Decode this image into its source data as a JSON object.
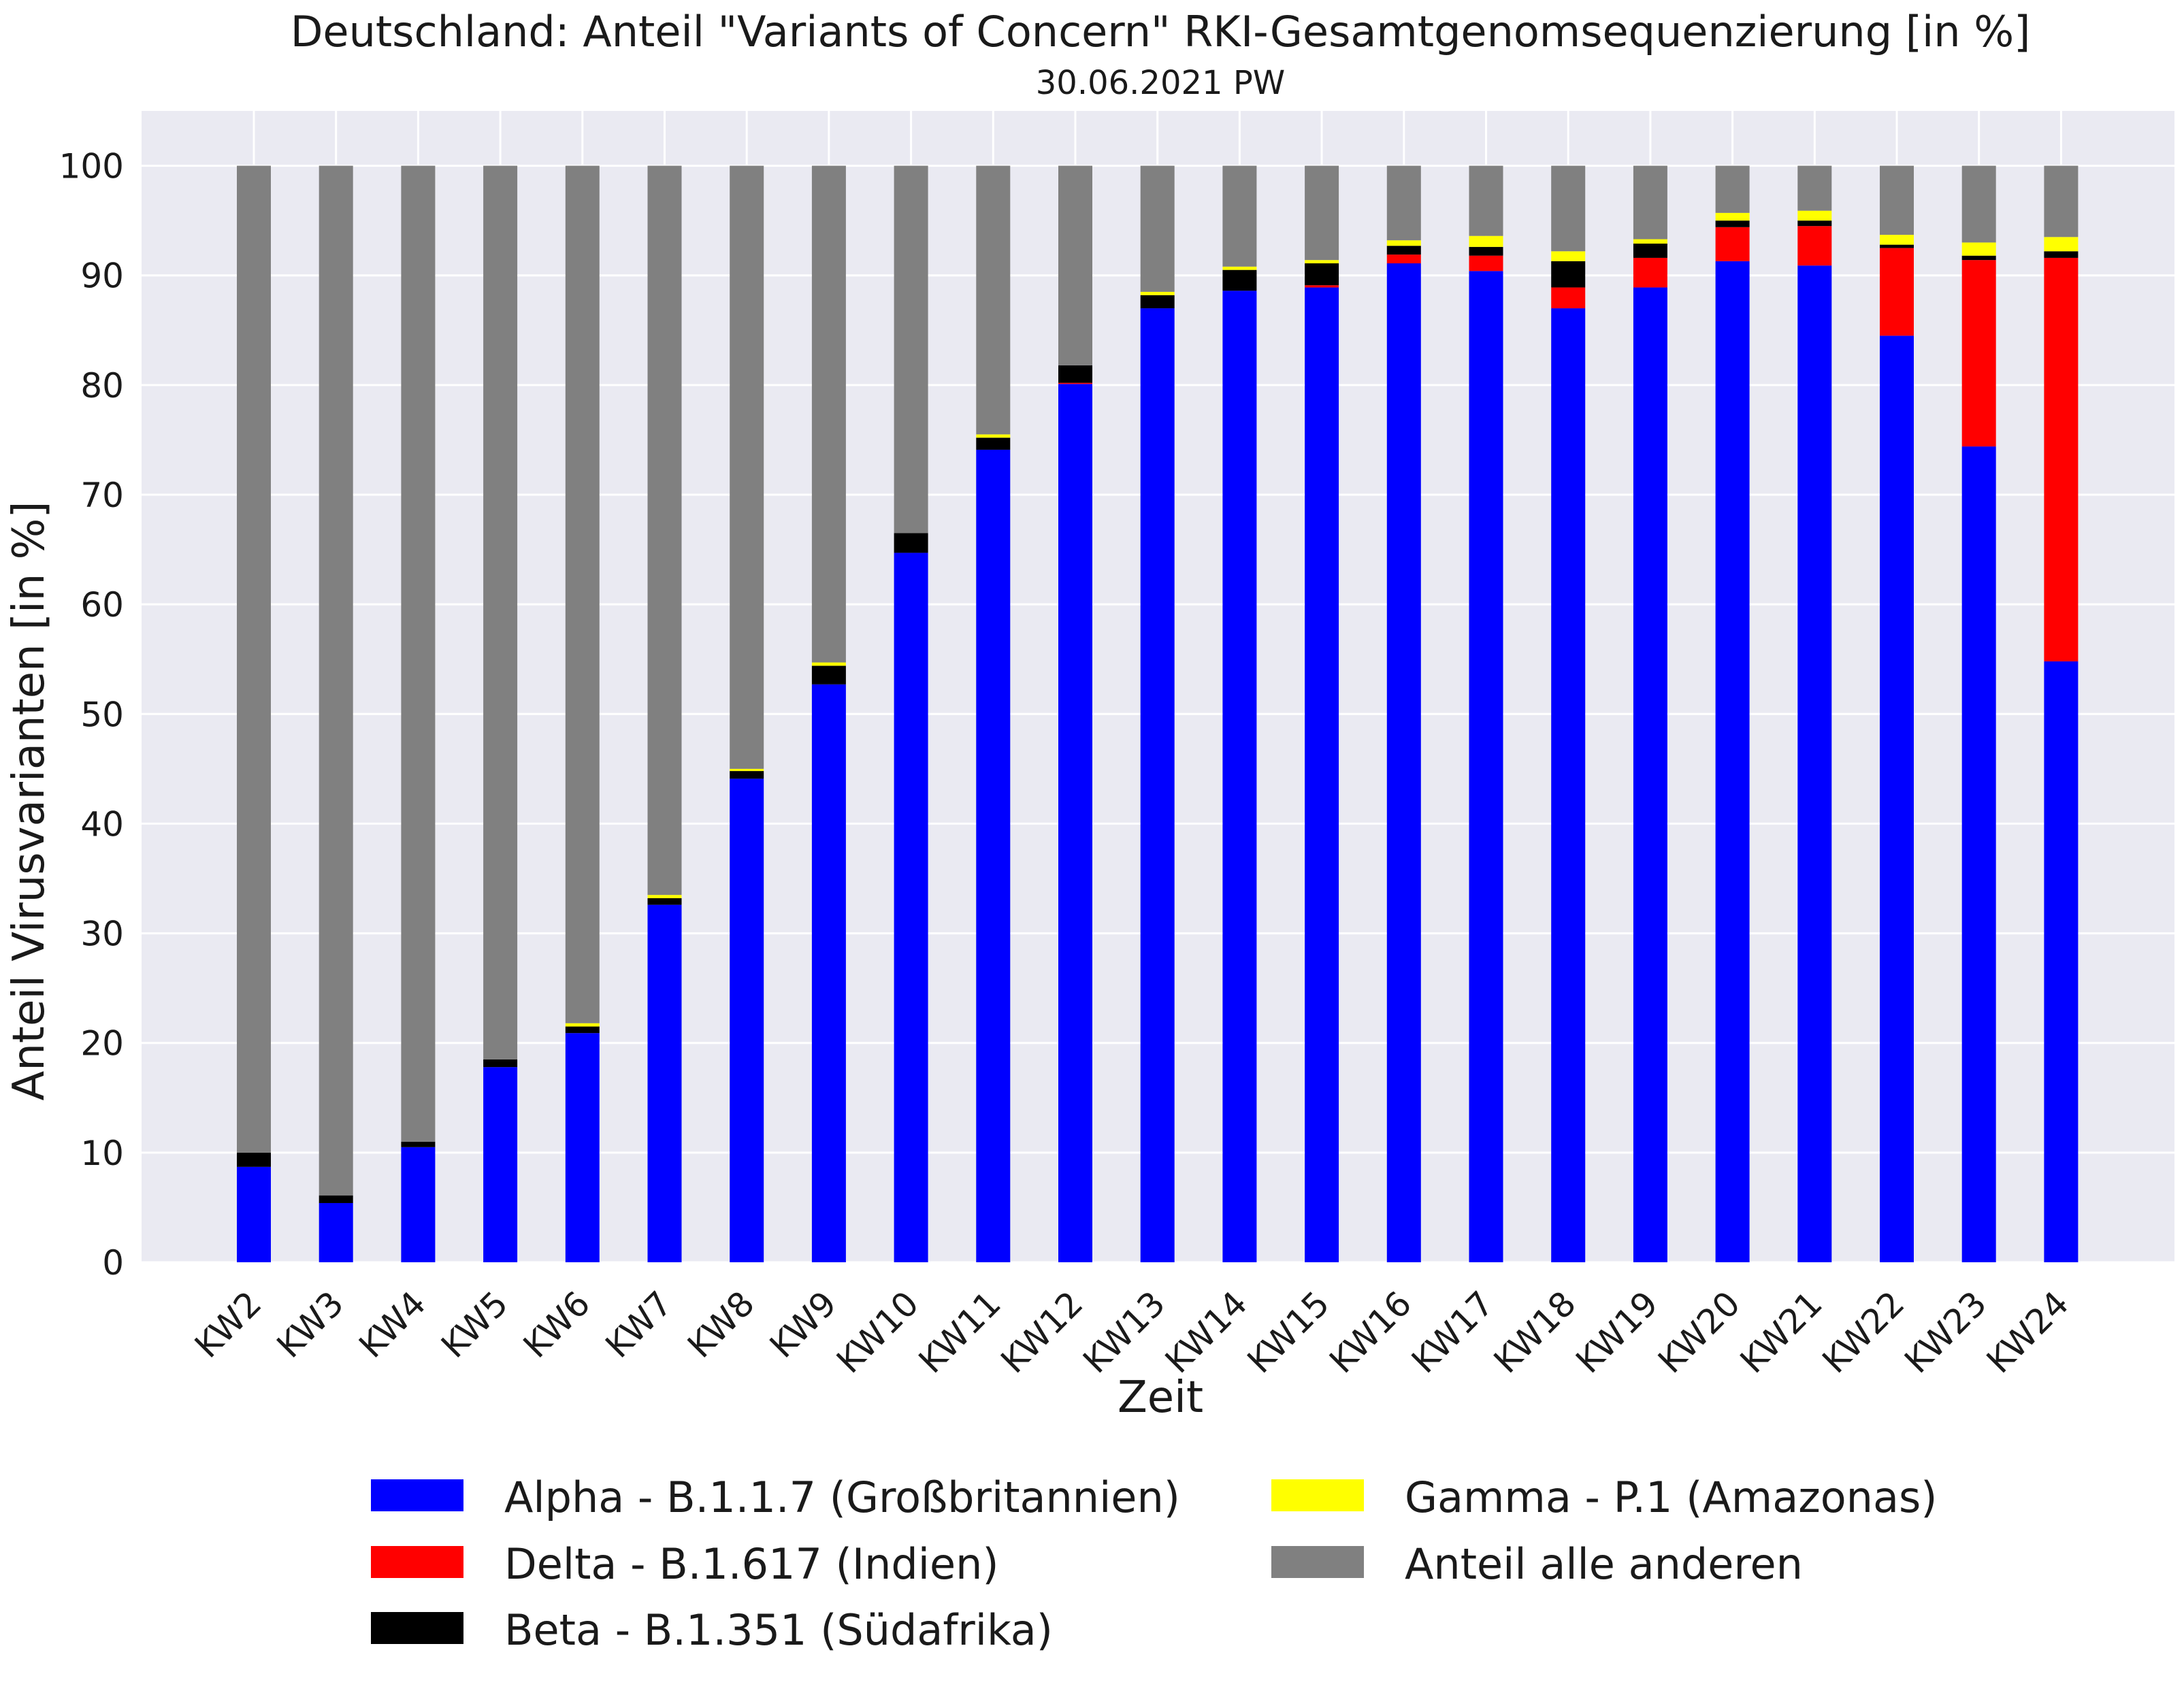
{
  "chart_data": {
    "type": "bar",
    "stacked": true,
    "title": "Deutschland: Anteil \"Variants of Concern\" RKI-Gesamtgenomsequenzierung [in %]",
    "subtitle": "30.06.2021 PW",
    "xlabel": "Zeit",
    "ylabel": "Anteil Virusvarianten [in %]",
    "ylim": [
      0,
      105
    ],
    "yticks": [
      0,
      10,
      20,
      30,
      40,
      50,
      60,
      70,
      80,
      90,
      100
    ],
    "grid": true,
    "legend_position": "bottom",
    "categories": [
      "KW2",
      "KW3",
      "KW4",
      "KW5",
      "KW6",
      "KW7",
      "KW8",
      "KW9",
      "KW10",
      "KW11",
      "KW12",
      "KW13",
      "KW14",
      "KW15",
      "KW16",
      "KW17",
      "KW18",
      "KW19",
      "KW20",
      "KW21",
      "KW22",
      "KW23",
      "KW24"
    ],
    "series": [
      {
        "name": "Alpha - B.1.1.7 (Großbritannien)",
        "color": "#0000ff",
        "values": [
          8.7,
          5.4,
          10.5,
          17.8,
          20.9,
          32.6,
          44.1,
          52.7,
          64.7,
          74.1,
          80.1,
          87.0,
          88.6,
          88.9,
          91.1,
          90.4,
          87.0,
          88.9,
          91.3,
          90.9,
          84.5,
          74.4,
          54.8
        ]
      },
      {
        "name": "Delta - B.1.617 (Indien)",
        "color": "#ff0000",
        "values": [
          0,
          0,
          0,
          0,
          0,
          0,
          0,
          0,
          0,
          0,
          0.1,
          0,
          0,
          0.2,
          0.8,
          1.4,
          1.9,
          2.7,
          3.1,
          3.6,
          8.0,
          17.0,
          36.8
        ]
      },
      {
        "name": "Beta - B.1.351 (Südafrika)",
        "color": "#000000",
        "values": [
          1.3,
          0.7,
          0.5,
          0.7,
          0.6,
          0.6,
          0.7,
          1.7,
          1.8,
          1.1,
          1.6,
          1.2,
          1.9,
          2.0,
          0.8,
          0.8,
          2.4,
          1.3,
          0.6,
          0.5,
          0.3,
          0.4,
          0.6
        ]
      },
      {
        "name": "Gamma - P.1 (Amazonas)",
        "color": "#ffff00",
        "values": [
          0,
          0,
          0,
          0,
          0.3,
          0.3,
          0.2,
          0.3,
          0,
          0.3,
          0,
          0.3,
          0.3,
          0.3,
          0.5,
          1.0,
          0.9,
          0.4,
          0.7,
          0.9,
          0.9,
          1.2,
          1.3
        ]
      },
      {
        "name": "Anteil alle anderen",
        "color": "#808080",
        "values": [
          90.0,
          93.9,
          89.0,
          81.5,
          78.2,
          66.5,
          55.0,
          45.3,
          33.5,
          24.5,
          18.2,
          11.5,
          9.2,
          8.6,
          6.8,
          6.4,
          7.8,
          6.7,
          4.3,
          4.1,
          6.3,
          7.0,
          6.5
        ]
      }
    ],
    "colors": {
      "plot_background": "#eaeaf2",
      "grid": "#ffffff"
    }
  }
}
